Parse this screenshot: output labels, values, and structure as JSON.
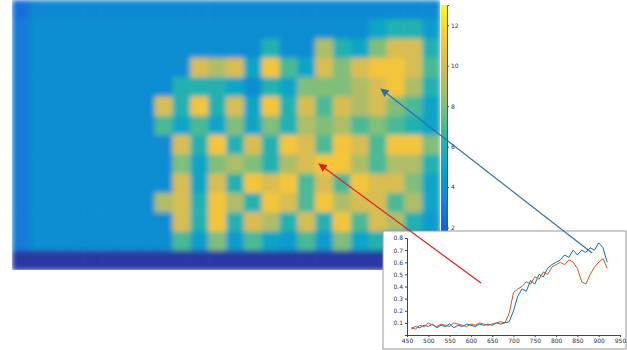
{
  "chart_data": [
    {
      "type": "heatmap",
      "values": [
        [
          2.5,
          3.6,
          3.6,
          3.6,
          3.6,
          3.6,
          3.6,
          3.6,
          3.6,
          3.6,
          3.6,
          3.6,
          3.6,
          3.6,
          3.6,
          3.6,
          3.6,
          3.6,
          3.6,
          3.6,
          3.6,
          3.6,
          3.6,
          3.6
        ],
        [
          3,
          3.8,
          3.8,
          3.8,
          3.8,
          3.8,
          3.8,
          3.8,
          3.8,
          3.8,
          3.8,
          3.8,
          3.8,
          3.8,
          3.8,
          3.8,
          3.8,
          3.8,
          3.8,
          3.8,
          5,
          6,
          6,
          4.5
        ],
        [
          3,
          3.8,
          3.8,
          3.8,
          3.8,
          3.8,
          3.8,
          3.8,
          3.8,
          3.8,
          3.8,
          3.8,
          3.8,
          3.8,
          6,
          3.8,
          3.8,
          9,
          6,
          5,
          8,
          10,
          10,
          6
        ],
        [
          3,
          3.8,
          3.8,
          3.8,
          3.8,
          3.8,
          3.8,
          3.8,
          3.8,
          3.8,
          10,
          9,
          10,
          5,
          11,
          7,
          5,
          10,
          8,
          10,
          11,
          11,
          10,
          7
        ],
        [
          3,
          3.8,
          3.8,
          3.8,
          3.8,
          3.8,
          3.8,
          3.8,
          3.8,
          6,
          6,
          6,
          5,
          3.8,
          6,
          5,
          8,
          8,
          8,
          9,
          10,
          11,
          9,
          6
        ],
        [
          3,
          3.8,
          3.8,
          3.8,
          3.8,
          3.8,
          3.8,
          3.8,
          10,
          6,
          11,
          6,
          10,
          5,
          11,
          6,
          10,
          7,
          10,
          9,
          10,
          8,
          7,
          5
        ],
        [
          3,
          3.8,
          3.8,
          3.8,
          3.8,
          3.8,
          3.8,
          3.8,
          7,
          5,
          7,
          5,
          8,
          5,
          8,
          6,
          9,
          8,
          9,
          7,
          8,
          7,
          6,
          5
        ],
        [
          3,
          3.8,
          3.8,
          3.8,
          3.8,
          3.8,
          3.8,
          3.8,
          3.8,
          10,
          6,
          11,
          6,
          10,
          6,
          11,
          10,
          7,
          11,
          10,
          7,
          11,
          11,
          8
        ],
        [
          3,
          3.8,
          3.8,
          3.8,
          3.8,
          3.8,
          3.8,
          3.8,
          3.8,
          8,
          5,
          8,
          9,
          8,
          6,
          9,
          10,
          11,
          11,
          9,
          7,
          9,
          9,
          6
        ],
        [
          3,
          3.8,
          3.8,
          3.8,
          3.8,
          3.8,
          3.8,
          3.8,
          3.8,
          10,
          5,
          10,
          6,
          11,
          10,
          11,
          7,
          10,
          7,
          11,
          10,
          10,
          8,
          5
        ],
        [
          3,
          3.8,
          3.8,
          3.8,
          3.8,
          3.8,
          3.8,
          3.8,
          9,
          10,
          6,
          11,
          9,
          6,
          11,
          10,
          7,
          11,
          9,
          10,
          10,
          7,
          9,
          5
        ],
        [
          3,
          3.8,
          3.8,
          3.8,
          3.8,
          3.8,
          3.8,
          3.8,
          3.8,
          10,
          6,
          11,
          6,
          10,
          9,
          6,
          10,
          6,
          11,
          7,
          10,
          9,
          6,
          4.5
        ],
        [
          3,
          3.8,
          3.8,
          3.8,
          3.8,
          3.8,
          3.8,
          3.8,
          3.8,
          7,
          4.5,
          8,
          4.5,
          7,
          5,
          4.5,
          7,
          4.5,
          8,
          5,
          6,
          5,
          4.5,
          3.8
        ],
        [
          0.5,
          0.5,
          0.5,
          0.5,
          0.5,
          0.5,
          0.5,
          0.5,
          0.5,
          0.5,
          0.5,
          0.5,
          0.5,
          0.5,
          0.5,
          0.5,
          0.5,
          0.5,
          0.5,
          0.5,
          0.5,
          0.5,
          0.5,
          0.5
        ]
      ],
      "color_range": [
        0,
        13
      ],
      "color_ticks": [
        2,
        4,
        6,
        8,
        10,
        12
      ]
    },
    {
      "type": "line",
      "x": [
        460,
        470,
        480,
        490,
        500,
        510,
        520,
        530,
        540,
        550,
        560,
        570,
        580,
        590,
        600,
        610,
        620,
        630,
        640,
        650,
        660,
        670,
        680,
        690,
        700,
        710,
        720,
        730,
        740,
        750,
        760,
        770,
        780,
        790,
        800,
        810,
        820,
        830,
        840,
        850,
        860,
        870,
        880,
        890,
        900,
        910,
        920
      ],
      "series": [
        {
          "color": "#0072bd",
          "values": [
            0.05,
            0.07,
            0.06,
            0.08,
            0.07,
            0.09,
            0.06,
            0.08,
            0.07,
            0.09,
            0.06,
            0.08,
            0.07,
            0.09,
            0.08,
            0.07,
            0.09,
            0.08,
            0.09,
            0.08,
            0.1,
            0.09,
            0.1,
            0.11,
            0.2,
            0.32,
            0.38,
            0.36,
            0.45,
            0.42,
            0.5,
            0.48,
            0.55,
            0.58,
            0.6,
            0.62,
            0.66,
            0.64,
            0.7,
            0.66,
            0.7,
            0.68,
            0.72,
            0.7,
            0.76,
            0.72,
            0.6
          ]
        },
        {
          "color": "#d95319",
          "values": [
            0.06,
            0.05,
            0.08,
            0.07,
            0.1,
            0.08,
            0.07,
            0.09,
            0.08,
            0.07,
            0.1,
            0.09,
            0.08,
            0.07,
            0.09,
            0.08,
            0.1,
            0.09,
            0.08,
            0.09,
            0.1,
            0.11,
            0.1,
            0.18,
            0.35,
            0.38,
            0.4,
            0.44,
            0.42,
            0.48,
            0.46,
            0.52,
            0.5,
            0.56,
            0.58,
            0.6,
            0.58,
            0.62,
            0.6,
            0.55,
            0.44,
            0.42,
            0.5,
            0.56,
            0.6,
            0.63,
            0.55
          ]
        }
      ],
      "xlim": [
        450,
        950
      ],
      "xticks": [
        450,
        500,
        550,
        600,
        650,
        700,
        750,
        800,
        850,
        900,
        950
      ],
      "ylim": [
        0,
        0.8
      ],
      "yticks": [
        0.1,
        0.2,
        0.3,
        0.4,
        0.5,
        0.6,
        0.7,
        0.8
      ]
    }
  ]
}
